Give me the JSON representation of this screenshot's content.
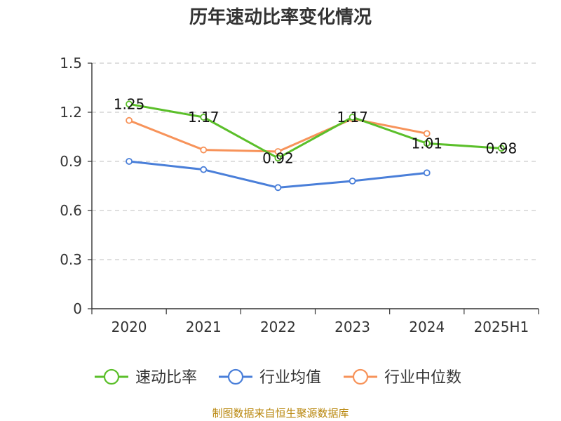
{
  "chart_data": {
    "type": "line",
    "title": "历年速动比率变化情况",
    "categories": [
      "2020",
      "2021",
      "2022",
      "2023",
      "2024",
      "2025H1"
    ],
    "ylim": [
      0,
      1.5
    ],
    "yticks": [
      "0",
      "0.3",
      "0.6",
      "0.9",
      "1.2",
      "1.5"
    ],
    "grid": true,
    "legend_position": "bottom",
    "series": [
      {
        "name": "速动比率",
        "color": "#5bbf2a",
        "values": [
          1.25,
          1.17,
          0.92,
          1.17,
          1.01,
          0.98
        ],
        "labels": [
          "1.25",
          "1.17",
          "0.92",
          "1.17",
          "1.01",
          "0.98"
        ]
      },
      {
        "name": "行业均值",
        "color": "#4a7fd9",
        "values": [
          0.9,
          0.85,
          0.74,
          0.78,
          0.83,
          null
        ]
      },
      {
        "name": "行业中位数",
        "color": "#f7935a",
        "values": [
          1.15,
          0.97,
          0.96,
          1.16,
          1.07,
          null
        ]
      }
    ]
  },
  "source_note": "制图数据来自恒生聚源数据库"
}
